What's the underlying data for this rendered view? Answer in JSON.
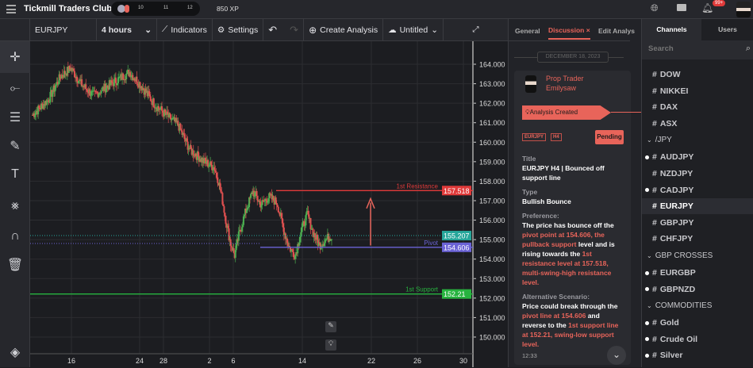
{
  "topbar": {
    "app_title": "Tickmill Traders Club",
    "levels": [
      "10",
      "11",
      "12"
    ],
    "xp": "850 XP",
    "notif_badge": "99+"
  },
  "toolbar": {
    "symbol": "EURJPY",
    "timeframe": "4 hours",
    "indicators": "Indicators",
    "settings": "Settings",
    "create_analysis": "Create Analysis",
    "layout_name": "Untitled"
  },
  "chart": {
    "price_ticks": [
      "164.000",
      "163.000",
      "162.000",
      "161.000",
      "160.000",
      "159.000",
      "158.000",
      "157.000",
      "156.000",
      "155.000",
      "154.000",
      "153.000",
      "152.000",
      "151.000",
      "150.000"
    ],
    "date_ticks": [
      "16",
      "24",
      "28",
      "2",
      "6",
      "14",
      "22",
      "26",
      "30"
    ],
    "lines": {
      "resistance": {
        "label": "1st Resistance",
        "value": "157.518",
        "color": "#e03a3a"
      },
      "current": {
        "value": "155.207",
        "color": "#26a69a"
      },
      "pivot": {
        "label": "Pivot",
        "value": "154.606",
        "color": "#6b63d6"
      },
      "support": {
        "label": "1st Support",
        "value": "152.21",
        "color": "#27b33f"
      }
    },
    "price_path": [
      [
        0,
        161.4
      ],
      [
        8,
        162.2
      ],
      [
        14,
        163.4
      ],
      [
        19,
        163.8
      ],
      [
        24,
        163.0
      ],
      [
        30,
        162.4
      ],
      [
        36,
        162.8
      ],
      [
        42,
        163.2
      ],
      [
        48,
        163.6
      ],
      [
        53,
        163.0
      ],
      [
        60,
        162.0
      ],
      [
        66,
        161.4
      ],
      [
        72,
        160.9
      ],
      [
        75,
        160.2
      ],
      [
        78,
        159.6
      ],
      [
        85,
        159.0
      ],
      [
        90,
        158.7
      ],
      [
        92,
        158.0
      ],
      [
        94,
        157.0
      ],
      [
        96,
        155.8
      ],
      [
        98,
        154.8
      ],
      [
        100,
        154.2
      ],
      [
        102,
        155.2
      ],
      [
        105,
        156.3
      ],
      [
        109,
        157.5
      ],
      [
        113,
        156.8
      ],
      [
        117,
        157.2
      ],
      [
        121,
        156.9
      ],
      [
        124,
        155.6
      ],
      [
        127,
        154.6
      ],
      [
        130,
        154.2
      ],
      [
        133,
        155.5
      ],
      [
        136,
        156.3
      ],
      [
        139,
        155.3
      ],
      [
        142,
        154.7
      ],
      [
        145,
        155.0
      ],
      [
        148,
        155.2
      ]
    ]
  },
  "discussion": {
    "tabs": [
      "General",
      "Discussion",
      "Edit Analys"
    ],
    "date": "DECEMBER 18, 2023",
    "author_role": "Prop Trader",
    "author_name": "Emilysaw",
    "banner": "Analysis Created",
    "tags": [
      "EURJPY",
      "H4"
    ],
    "status": "Pending",
    "title_label": "Title",
    "title": "EURJPY H4 | Bounced off support line",
    "type_label": "Type",
    "type": "Bullish Bounce",
    "pref_label": "Preference:",
    "pref": [
      "The price has bounce off the ",
      "pivot point at 154.606, the pullback support",
      " level and is rising towards the ",
      "1st resistance level at 157.518, multi-swing-high resistance level."
    ],
    "alt_label": "Alternative Scenario:",
    "alt": [
      "Price could break through the ",
      "pivot line at 154.606",
      " and reverse to the ",
      "1st support line at 152.21, swing-low support level."
    ],
    "time": "12:33"
  },
  "channels": {
    "tabs": [
      "Channels",
      "Users"
    ],
    "search_placeholder": "Search",
    "items": [
      {
        "type": "ch",
        "name": "DOW",
        "dot": false
      },
      {
        "type": "ch",
        "name": "NIKKEI",
        "dot": false
      },
      {
        "type": "ch",
        "name": "DAX",
        "dot": false
      },
      {
        "type": "ch",
        "name": "ASX",
        "dot": false
      },
      {
        "type": "grp",
        "name": "/JPY"
      },
      {
        "type": "ch",
        "name": "AUDJPY",
        "dot": true
      },
      {
        "type": "ch",
        "name": "NZDJPY",
        "dot": false
      },
      {
        "type": "ch",
        "name": "CADJPY",
        "dot": true
      },
      {
        "type": "ch",
        "name": "EURJPY",
        "dot": false,
        "active": true
      },
      {
        "type": "ch",
        "name": "GBPJPY",
        "dot": false
      },
      {
        "type": "ch",
        "name": "CHFJPY",
        "dot": false
      },
      {
        "type": "grp",
        "name": "GBP CROSSES"
      },
      {
        "type": "ch",
        "name": "EURGBP",
        "dot": true
      },
      {
        "type": "ch",
        "name": "GBPNZD",
        "dot": true
      },
      {
        "type": "grp",
        "name": "COMMODITIES"
      },
      {
        "type": "ch",
        "name": "Gold",
        "dot": true
      },
      {
        "type": "ch",
        "name": "Crude Oil",
        "dot": true
      },
      {
        "type": "ch",
        "name": "Silver",
        "dot": true
      }
    ]
  },
  "colors": {
    "accent": "#e8645a",
    "bg": "#1c1d21",
    "panel": "#26272c"
  }
}
